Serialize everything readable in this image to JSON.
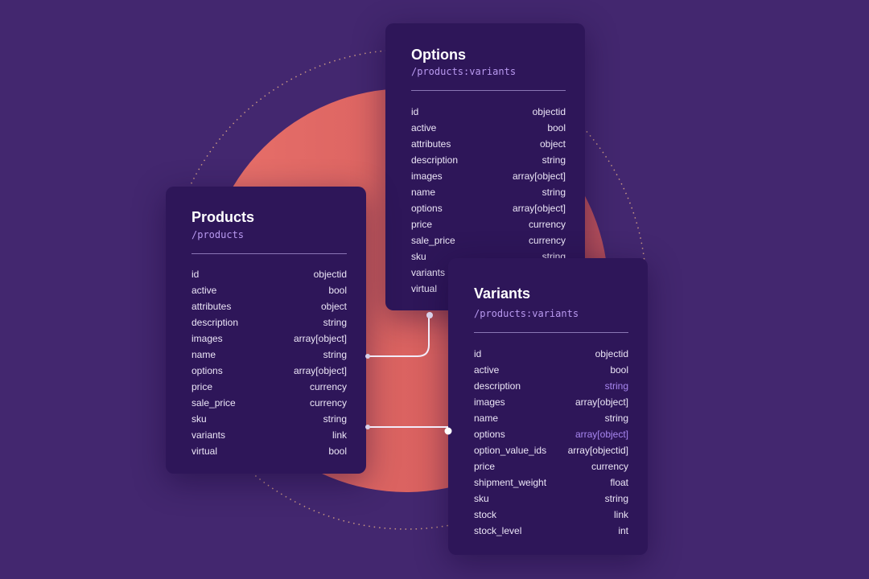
{
  "colors": {
    "background": "#43276f",
    "circle": "#e0675f",
    "card": "#2e1659",
    "path": "#b99af0",
    "dotted_ring": "#e8b48a"
  },
  "tables": {
    "options": {
      "title": "Options",
      "path": "/products:variants",
      "fields": [
        {
          "name": "id",
          "type": "objectid"
        },
        {
          "name": "active",
          "type": "bool"
        },
        {
          "name": "attributes",
          "type": "object"
        },
        {
          "name": "description",
          "type": "string"
        },
        {
          "name": "images",
          "type": "array[object]"
        },
        {
          "name": "name",
          "type": "string"
        },
        {
          "name": "options",
          "type": "array[object]"
        },
        {
          "name": "price",
          "type": "currency"
        },
        {
          "name": "sale_price",
          "type": "currency"
        },
        {
          "name": "sku",
          "type": "string"
        },
        {
          "name": "variants",
          "type": ""
        },
        {
          "name": "virtual",
          "type": ""
        }
      ]
    },
    "products": {
      "title": "Products",
      "path": "/products",
      "fields": [
        {
          "name": "id",
          "type": "objectid"
        },
        {
          "name": "active",
          "type": "bool"
        },
        {
          "name": "attributes",
          "type": "object"
        },
        {
          "name": "description",
          "type": "string"
        },
        {
          "name": "images",
          "type": "array[object]"
        },
        {
          "name": "name",
          "type": "string"
        },
        {
          "name": "options",
          "type": "array[object]"
        },
        {
          "name": "price",
          "type": "currency"
        },
        {
          "name": "sale_price",
          "type": "currency"
        },
        {
          "name": "sku",
          "type": "string"
        },
        {
          "name": "variants",
          "type": "link"
        },
        {
          "name": "virtual",
          "type": "bool"
        }
      ]
    },
    "variants": {
      "title": "Variants",
      "path": "/products:variants",
      "fields": [
        {
          "name": "id",
          "type": "objectid"
        },
        {
          "name": "active",
          "type": "bool"
        },
        {
          "name": "description",
          "type": "string",
          "highlight": true
        },
        {
          "name": "images",
          "type": "array[object]"
        },
        {
          "name": "name",
          "type": "string"
        },
        {
          "name": "options",
          "type": "array[object]",
          "highlight": true
        },
        {
          "name": "option_value_ids",
          "type": "array[objectid]"
        },
        {
          "name": "price",
          "type": "currency"
        },
        {
          "name": "shipment_weight",
          "type": "float"
        },
        {
          "name": "sku",
          "type": "string"
        },
        {
          "name": "stock",
          "type": "link"
        },
        {
          "name": "stock_level",
          "type": "int"
        }
      ]
    }
  }
}
